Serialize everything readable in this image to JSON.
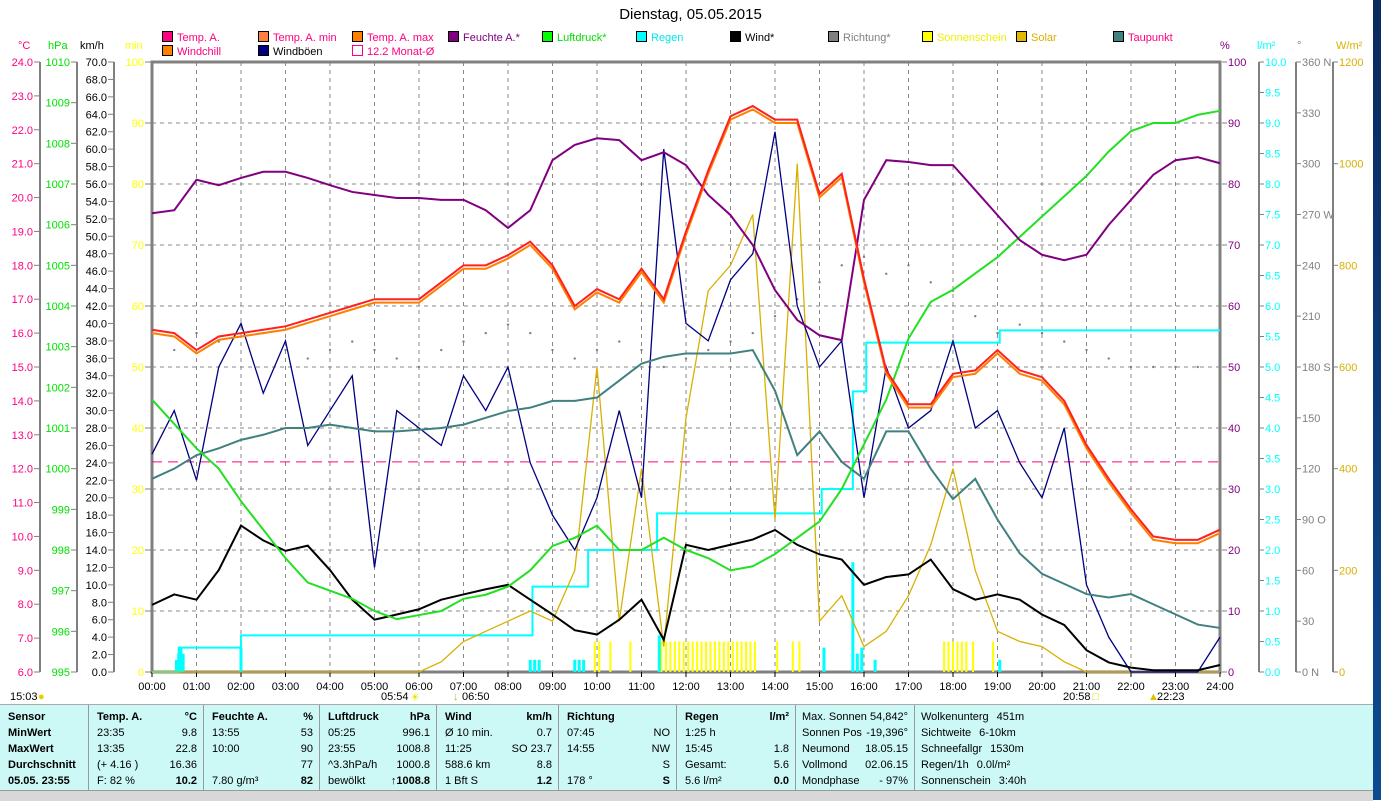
{
  "title": "Dienstag, 05.05.2015",
  "legend": [
    {
      "label": "Temp. A.",
      "box": "#ff0080",
      "text": "#ff0080",
      "row": 0,
      "col": 0
    },
    {
      "label": "Temp. A. min",
      "box": "#ff8040",
      "text": "#ff0080",
      "row": 0,
      "col": 1
    },
    {
      "label": "Temp. A. max",
      "box": "#ff8000",
      "text": "#ff0080",
      "row": 0,
      "col": 2
    },
    {
      "label": "Feuchte A.*",
      "box": "#800080",
      "text": "#800080",
      "row": 0,
      "col": 3
    },
    {
      "label": "Luftdruck*",
      "box": "#00ff00",
      "text": "#00e000",
      "row": 0,
      "col": 4
    },
    {
      "label": "Regen",
      "box": "#00ffff",
      "text": "#00e8e8",
      "row": 0,
      "col": 5
    },
    {
      "label": "Wind*",
      "box": "#000000",
      "text": "#000000",
      "row": 0,
      "col": 6
    },
    {
      "label": "Richtung*",
      "box": "#808080",
      "text": "#808080",
      "row": 0,
      "col": 7
    },
    {
      "label": "Sonnenschein",
      "box": "#ffff00",
      "text": "#f0f000",
      "row": 0,
      "col": 8
    },
    {
      "label": "Solar",
      "box": "#e0b800",
      "text": "#d8b000",
      "row": 0,
      "col": 9
    },
    {
      "label": "Taupunkt",
      "box": "#408080",
      "text": "#ff0080",
      "row": 0,
      "col": 10
    },
    {
      "label": "Windchill",
      "box": "#ff8000",
      "text": "#ff0080",
      "row": 1,
      "col": 0
    },
    {
      "label": "Windböen",
      "box": "#000080",
      "text": "#000000",
      "row": 1,
      "col": 1
    },
    {
      "label": "12.2 Monat-Ø",
      "box": "#ffffff",
      "text": "#ff0080",
      "row": 1,
      "col": 2
    }
  ],
  "chart_data": {
    "type": "line",
    "title": "Dienstag, 05.05.2015",
    "xlabel": "",
    "x_ticks": [
      "00:00",
      "01:00",
      "02:00",
      "03:00",
      "04:00",
      "05:00",
      "06:00",
      "07:00",
      "08:00",
      "09:00",
      "10:00",
      "11:00",
      "12:00",
      "13:00",
      "14:00",
      "15:00",
      "16:00",
      "17:00",
      "18:00",
      "19:00",
      "20:00",
      "21:00",
      "22:00",
      "23:00",
      "24:00"
    ],
    "xlim_hours": [
      0,
      24
    ],
    "grid": true,
    "axes": [
      {
        "id": "temp",
        "unit": "°C",
        "color": "#ff0080",
        "min": 6,
        "max": 24,
        "labels": [
          "24.0",
          "23.0",
          "22.0",
          "21.0",
          "20.0",
          "19.0",
          "18.0",
          "17.0",
          "16.0",
          "15.0",
          "14.0",
          "13.0",
          "12.0",
          "11.0",
          "10.0",
          "9.0",
          "8.0",
          "7.0",
          "6.0"
        ]
      },
      {
        "id": "press",
        "unit": "hPa",
        "color": "#00e000",
        "min": 995,
        "max": 1010,
        "labels": [
          "1010",
          "1009",
          "1008",
          "1007",
          "1006",
          "1005",
          "1004",
          "1003",
          "1002",
          "1001",
          "1000",
          "999",
          "998",
          "997",
          "996",
          "995"
        ]
      },
      {
        "id": "wind",
        "unit": "km/h",
        "color": "#000000",
        "min": 0,
        "max": 70,
        "labels": [
          "70.0",
          "68.0",
          "66.0",
          "64.0",
          "62.0",
          "60.0",
          "58.0",
          "56.0",
          "54.0",
          "52.0",
          "50.0",
          "48.0",
          "46.0",
          "44.0",
          "42.0",
          "40.0",
          "38.0",
          "36.0",
          "34.0",
          "32.0",
          "30.0",
          "28.0",
          "26.0",
          "24.0",
          "22.0",
          "20.0",
          "18.0",
          "16.0",
          "14.0",
          "12.0",
          "10.0",
          "8.0",
          "6.0",
          "4.0",
          "2.0",
          "0.0"
        ]
      },
      {
        "id": "min",
        "unit": "min",
        "color": "#ffff00",
        "min": 0,
        "max": 100,
        "labels": [
          "100",
          "90",
          "80",
          "70",
          "60",
          "50",
          "40",
          "30",
          "20",
          "10",
          "0"
        ]
      },
      {
        "id": "hum",
        "unit": "%",
        "color": "#800080",
        "min": 0,
        "max": 100,
        "labels": [
          "100",
          "90",
          "80",
          "70",
          "60",
          "50",
          "40",
          "30",
          "20",
          "10",
          "0"
        ]
      },
      {
        "id": "rain",
        "unit": "l/m²",
        "color": "#00ffff",
        "min": 0,
        "max": 10,
        "labels": [
          "10.0",
          "9.5",
          "9.0",
          "8.5",
          "8.0",
          "7.5",
          "7.0",
          "6.5",
          "6.0",
          "5.5",
          "5.0",
          "4.5",
          "4.0",
          "3.5",
          "3.0",
          "2.5",
          "2.0",
          "1.5",
          "1.0",
          "0.5",
          "0.0"
        ]
      },
      {
        "id": "dir",
        "unit": "°",
        "color": "#808080",
        "min": 0,
        "max": 360,
        "labels": [
          "360 N",
          "330",
          "300",
          "270 W",
          "240",
          "210",
          "180 S",
          "150",
          "120",
          "90 O",
          "60",
          "30",
          "0 N"
        ]
      },
      {
        "id": "solar",
        "unit": "W/m²",
        "color": "#d8b000",
        "min": 0,
        "max": 1200,
        "labels": [
          "1200",
          "1000",
          "800",
          "600",
          "400",
          "200",
          "0"
        ]
      }
    ],
    "x_hours_half": [
      0,
      0.5,
      1,
      1.5,
      2,
      2.5,
      3,
      3.5,
      4,
      4.5,
      5,
      5.5,
      6,
      6.5,
      7,
      7.5,
      8,
      8.5,
      9,
      9.5,
      10,
      10.5,
      11,
      11.5,
      12,
      12.5,
      13,
      13.5,
      14,
      14.5,
      15,
      15.5,
      16,
      16.5,
      17,
      17.5,
      18,
      18.5,
      19,
      19.5,
      20,
      20.5,
      21,
      21.5,
      22,
      22.5,
      23,
      23.5,
      24
    ],
    "series": [
      {
        "name": "Temp. A.",
        "axis": "temp",
        "color": "#ff2020",
        "values": [
          16.1,
          16.0,
          15.5,
          15.9,
          16.0,
          16.1,
          16.2,
          16.4,
          16.6,
          16.8,
          17.0,
          17.0,
          17.0,
          17.5,
          18.0,
          18.0,
          18.3,
          18.7,
          18.0,
          16.8,
          17.3,
          17.0,
          17.9,
          17.0,
          19.0,
          20.8,
          22.4,
          22.7,
          22.3,
          22.3,
          20.1,
          20.7,
          17.6,
          14.9,
          13.9,
          13.9,
          14.8,
          14.9,
          15.5,
          14.9,
          14.7,
          14.0,
          12.7,
          11.7,
          10.8,
          10.0,
          9.9,
          9.9,
          10.2
        ]
      },
      {
        "name": "Windchill",
        "axis": "temp",
        "color": "#ff8000",
        "values": [
          16.0,
          15.9,
          15.4,
          15.8,
          15.9,
          16.0,
          16.1,
          16.3,
          16.5,
          16.7,
          16.9,
          16.9,
          16.9,
          17.4,
          17.9,
          17.9,
          18.2,
          18.6,
          17.9,
          16.7,
          17.2,
          16.9,
          17.8,
          16.9,
          18.9,
          20.7,
          22.3,
          22.6,
          22.2,
          22.2,
          20.0,
          20.6,
          17.5,
          14.8,
          13.8,
          13.8,
          14.7,
          14.8,
          15.4,
          14.8,
          14.6,
          13.9,
          12.6,
          11.6,
          10.7,
          9.9,
          9.8,
          9.8,
          10.1
        ]
      },
      {
        "name": "Feuchte A.*",
        "axis": "hum",
        "color": "#800080",
        "values": [
          75.2,
          75.7,
          80.7,
          79.8,
          81.0,
          82.0,
          82.0,
          81.0,
          79.8,
          78.7,
          78.2,
          77.7,
          77.7,
          77.4,
          77.4,
          75.7,
          72.8,
          75.7,
          83.9,
          86.4,
          87.5,
          87.2,
          83.9,
          85.2,
          83.1,
          78.2,
          74.9,
          70.0,
          62.6,
          57.7,
          55.2,
          54.4,
          77.4,
          83.9,
          83.6,
          83.1,
          83.1,
          79.0,
          74.9,
          70.8,
          68.4,
          67.5,
          68.4,
          73.3,
          77.4,
          81.5,
          83.9,
          84.4,
          83.4
        ]
      },
      {
        "name": "Luftdruck*",
        "axis": "press",
        "color": "#22e022",
        "values": [
          1001.7,
          1001.1,
          1000.5,
          1000.0,
          999.2,
          998.5,
          997.8,
          997.2,
          997.0,
          996.8,
          996.5,
          996.3,
          996.4,
          996.5,
          996.8,
          996.9,
          997.1,
          997.5,
          998.1,
          998.3,
          998.6,
          998.0,
          998.0,
          998.3,
          998.0,
          997.8,
          997.5,
          997.6,
          997.9,
          998.3,
          998.7,
          999.5,
          1000.6,
          1001.7,
          1003.2,
          1004.1,
          1004.4,
          1004.8,
          1005.2,
          1005.7,
          1006.2,
          1006.7,
          1007.2,
          1007.8,
          1008.3,
          1008.5,
          1008.5,
          1008.7,
          1008.8
        ]
      },
      {
        "name": "Taupunkt",
        "axis": "temp",
        "color": "#408080",
        "values": [
          11.7,
          12.0,
          12.4,
          12.6,
          12.85,
          13.0,
          13.2,
          13.2,
          13.3,
          13.2,
          13.1,
          13.1,
          13.15,
          13.2,
          13.3,
          13.5,
          13.7,
          13.8,
          14.0,
          14.0,
          14.1,
          14.6,
          15.1,
          15.3,
          15.4,
          15.4,
          15.4,
          15.5,
          14.3,
          12.4,
          13.1,
          12.2,
          11.7,
          13.1,
          13.1,
          12.0,
          11.1,
          11.7,
          10.5,
          9.5,
          8.9,
          8.6,
          8.3,
          8.2,
          8.3,
          8.0,
          7.7,
          7.4,
          7.3
        ]
      },
      {
        "name": "Wind*",
        "axis": "wind",
        "color": "#000000",
        "values": [
          7.7,
          8.9,
          8.3,
          11.7,
          16.8,
          15.1,
          13.9,
          14.5,
          11.7,
          8.3,
          6.0,
          6.6,
          7.2,
          8.3,
          8.9,
          9.5,
          10.0,
          8.3,
          6.6,
          4.8,
          4.3,
          6.0,
          8.3,
          3.7,
          14.6,
          14.0,
          14.6,
          15.2,
          16.3,
          14.6,
          13.5,
          12.9,
          10.0,
          10.9,
          11.2,
          12.9,
          9.5,
          8.3,
          8.9,
          8.3,
          6.6,
          5.4,
          2.5,
          1.1,
          0.5,
          0.2,
          0.2,
          0.2,
          0.8
        ]
      },
      {
        "name": "Windböen",
        "axis": "wind",
        "color": "#000080",
        "values": [
          25,
          30,
          22,
          35,
          40,
          32,
          38,
          26,
          30,
          34,
          12,
          30,
          28,
          26,
          34,
          30,
          35,
          24,
          18,
          14,
          20,
          30,
          20,
          60,
          40,
          38,
          45,
          48,
          62,
          42,
          35,
          38,
          20,
          35,
          28,
          30,
          38,
          28,
          30,
          24,
          20,
          28,
          10,
          4,
          0,
          0,
          0,
          0,
          4
        ]
      },
      {
        "name": "Richtung*",
        "axis": "dir",
        "color": "#808080",
        "style": "dots",
        "values": [
          185,
          190,
          200,
          195,
          205,
          200,
          190,
          185,
          190,
          195,
          190,
          185,
          180,
          190,
          195,
          200,
          205,
          200,
          190,
          185,
          190,
          195,
          190,
          180,
          185,
          190,
          195,
          200,
          210,
          220,
          230,
          240,
          245,
          235,
          240,
          230,
          225,
          210,
          200,
          205,
          200,
          195,
          190,
          185,
          180,
          180,
          180,
          180,
          180
        ]
      },
      {
        "name": "Solar",
        "axis": "solar",
        "color": "#d8b000",
        "values": [
          0,
          0,
          0,
          0,
          0,
          0,
          0,
          0,
          0,
          0,
          0,
          0,
          0,
          20,
          60,
          80,
          100,
          120,
          100,
          200,
          600,
          100,
          400,
          50,
          500,
          750,
          800,
          900,
          300,
          1000,
          100,
          150,
          50,
          80,
          150,
          250,
          400,
          200,
          80,
          60,
          50,
          20,
          0,
          0,
          0,
          0,
          0,
          0,
          0
        ]
      }
    ],
    "monthly_average": {
      "label": "12.2 Monat-Ø",
      "axis": "temp",
      "value": 12.2,
      "color": "#ff0080"
    },
    "rain_total_steps": [
      [
        0,
        0
      ],
      [
        0.6,
        0.4
      ],
      [
        2,
        0.6
      ],
      [
        8.55,
        1.4
      ],
      [
        9.8,
        2.0
      ],
      [
        11.35,
        2.6
      ],
      [
        15.05,
        3.0
      ],
      [
        15.75,
        4.6
      ],
      [
        16.05,
        5.4
      ],
      [
        19.05,
        5.6
      ],
      [
        24,
        5.6
      ]
    ],
    "rain_bars": {
      "axis": "rain",
      "color": "#00ffff",
      "hours": [
        0.55,
        0.6,
        0.65,
        0.7,
        2.0,
        8.5,
        8.6,
        8.7,
        9.5,
        9.6,
        9.7,
        11.4,
        15.1,
        15.75,
        15.85,
        15.95,
        16.25,
        19.05
      ],
      "values": [
        0.2,
        0.3,
        0.4,
        0.3,
        0.4,
        0.2,
        0.2,
        0.2,
        0.2,
        0.2,
        0.2,
        0.6,
        0.4,
        1.8,
        0.3,
        0.4,
        0.2,
        0.2
      ]
    },
    "sunshine_bars": {
      "axis": "min",
      "color": "#ffff00",
      "hours": [
        9.95,
        10.05,
        10.3,
        10.75,
        11.45,
        11.55,
        11.65,
        11.75,
        11.85,
        11.95,
        12.05,
        12.15,
        12.25,
        12.35,
        12.45,
        12.55,
        12.65,
        12.75,
        12.85,
        12.95,
        13.05,
        13.15,
        13.25,
        13.35,
        13.45,
        13.55,
        14.05,
        14.4,
        14.55,
        17.8,
        17.9,
        18.0,
        18.1,
        18.2,
        18.3,
        18.45,
        18.9
      ],
      "values": [
        5,
        5,
        5,
        5,
        5,
        5,
        5,
        5,
        5,
        5,
        5,
        5,
        5,
        5,
        5,
        5,
        5,
        5,
        5,
        5,
        5,
        5,
        5,
        5,
        5,
        5,
        5,
        5,
        5,
        5,
        5,
        5,
        5,
        5,
        5,
        5,
        5
      ]
    }
  },
  "sun": {
    "moonset": "15:03",
    "sunrise": "05:54",
    "transit": "06:50",
    "sunset": "20:58",
    "moonrise": "22:23"
  },
  "table": {
    "sensor": {
      "header": "Sensor",
      "rows": [
        "MinWert",
        "MaxWert",
        "Durchschnitt",
        "05.05. 23:55"
      ]
    },
    "temp": {
      "header": "Temp. A.",
      "unit": "°C",
      "rows": [
        [
          "23:35",
          "9.8"
        ],
        [
          "13:35",
          "22.8"
        ],
        [
          "(+ 4.16 )",
          "16.36"
        ],
        [
          "F: 82 %",
          "10.2"
        ]
      ]
    },
    "hum": {
      "header": "Feuchte A.",
      "unit": "%",
      "rows": [
        [
          "13:55",
          "53"
        ],
        [
          "10:00",
          "90"
        ],
        [
          "",
          "77"
        ],
        [
          "7.80 g/m³",
          "82"
        ]
      ]
    },
    "press": {
      "header": "Luftdruck",
      "unit": "hPa",
      "rows": [
        [
          "05:25",
          "996.1"
        ],
        [
          "23:55",
          "1008.8"
        ],
        [
          "^3.3hPa/h",
          "1000.8"
        ],
        [
          "bewölkt",
          "↑1008.8"
        ]
      ]
    },
    "wind": {
      "header": "Wind",
      "unit": "km/h",
      "rows": [
        [
          "Ø 10 min.",
          "0.7"
        ],
        [
          "11:25",
          "SO 23.7"
        ],
        [
          "588.6 km",
          "8.8"
        ],
        [
          "1 Bft S",
          "1.2"
        ]
      ]
    },
    "dir": {
      "header": "Richtung",
      "unit": "",
      "rows": [
        [
          "07:45",
          "NO"
        ],
        [
          "14:55",
          "NW"
        ],
        [
          "",
          "S"
        ],
        [
          "178 °",
          "S"
        ]
      ]
    },
    "rain": {
      "header": "Regen",
      "unit": "l/m²",
      "rows": [
        [
          "1:25 h",
          ""
        ],
        [
          "15:45",
          "1.8"
        ],
        [
          "Gesamt:",
          "5.6"
        ],
        [
          "5.6 l/m²",
          "0.0"
        ]
      ]
    },
    "astro": {
      "rows": [
        [
          "Max. Sonnen",
          "54,842°"
        ],
        [
          "Sonnen Pos",
          "-19,396°"
        ],
        [
          "Neumond",
          "18.05.15"
        ],
        [
          "Vollmond",
          "02.06.15"
        ],
        [
          "Mondphase",
          "- 97%"
        ]
      ]
    },
    "misc": {
      "rows": [
        [
          "Wolkenunterg",
          "451m"
        ],
        [
          "Sichtweite",
          "6-10km"
        ],
        [
          "Schneefallgr",
          "1530m"
        ],
        [
          "Regen/1h",
          "0.0l/m²"
        ],
        [
          "Sonnenschein",
          "3:40h"
        ]
      ]
    }
  }
}
